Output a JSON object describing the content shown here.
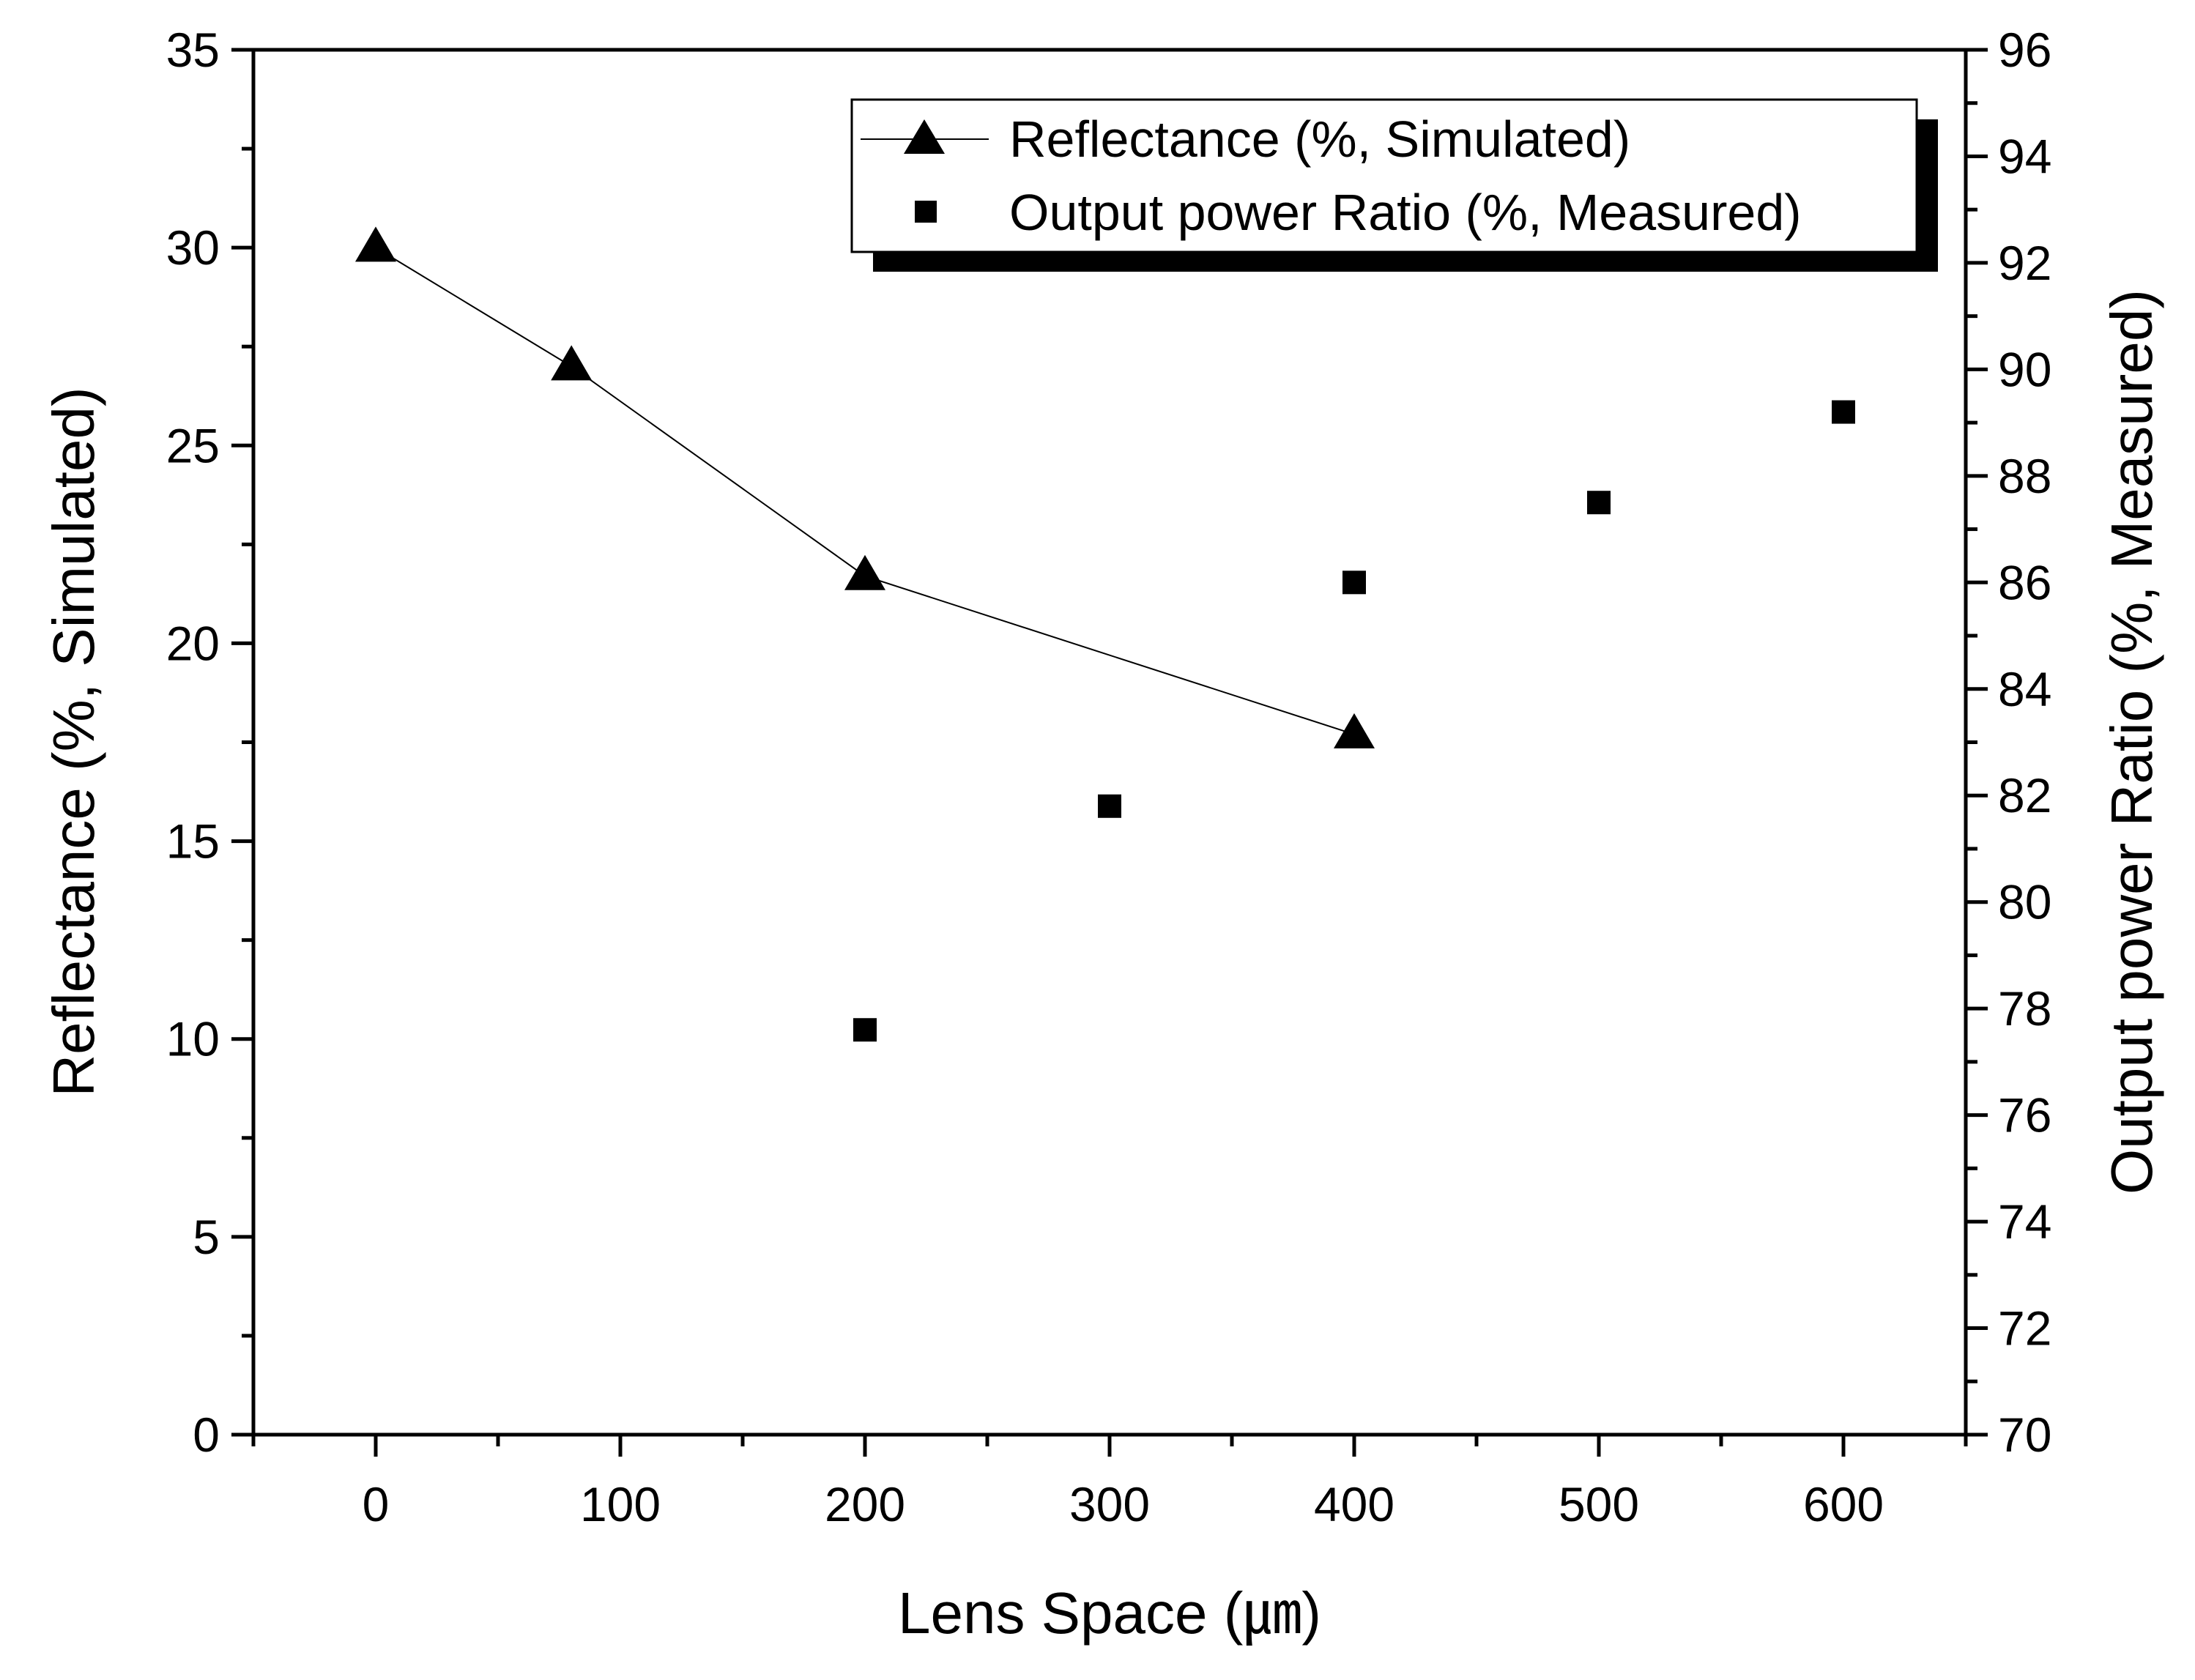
{
  "chart_data": {
    "type": "line+scatter",
    "title": "",
    "xlabel": "Lens Space (㎛)",
    "ylabel_left": "Reflectance (%, Simulated)",
    "ylabel_right": "Output power Ratio (%, Measured)",
    "xlim": [
      -50,
      650
    ],
    "ylim_left": [
      0,
      35
    ],
    "ylim_right": [
      70,
      96
    ],
    "x_ticks": [
      "0",
      "100",
      "200",
      "300",
      "400",
      "500",
      "600"
    ],
    "y_left_ticks": [
      "0",
      "5",
      "10",
      "15",
      "20",
      "25",
      "30",
      "35"
    ],
    "y_right_ticks": [
      "70",
      "72",
      "74",
      "76",
      "78",
      "80",
      "82",
      "84",
      "86",
      "88",
      "90",
      "92",
      "94",
      "96"
    ],
    "legend_position": "top-right",
    "series": [
      {
        "name": "Reflectance (%, Simulated)",
        "axis": "left",
        "marker": "triangle",
        "line": true,
        "x": [
          0,
          80,
          200,
          400
        ],
        "values": [
          30,
          27,
          21.7,
          17.7
        ]
      },
      {
        "name": "Output power Ratio (%, Measured)",
        "axis": "right",
        "marker": "square",
        "line": false,
        "x": [
          200,
          300,
          400,
          500,
          600
        ],
        "values": [
          77.6,
          81.8,
          86.0,
          87.5,
          89.2
        ]
      }
    ],
    "colors": {
      "line": "#000000",
      "marker": "#000000"
    }
  }
}
